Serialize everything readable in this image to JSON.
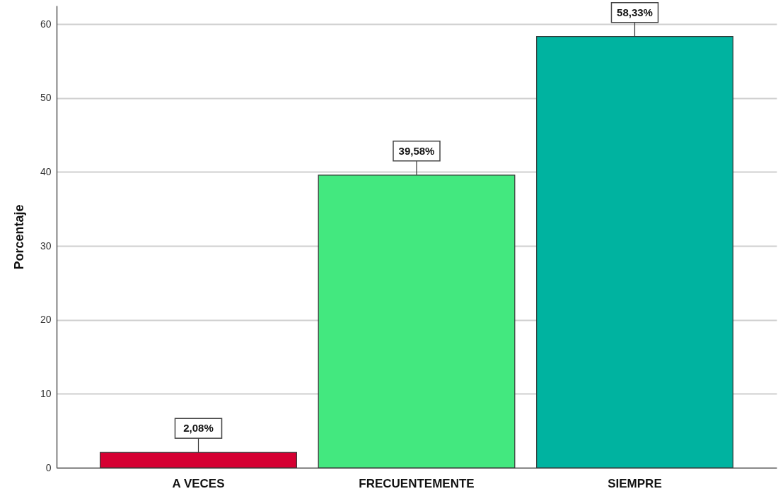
{
  "chart_data": {
    "type": "bar",
    "ylabel": "Porcentaje",
    "categories": [
      "A VECES",
      "FRECUENTEMENTE",
      "SIEMPRE"
    ],
    "values": [
      2.08,
      39.58,
      58.33
    ],
    "colors": [
      "#d50032",
      "#43e87f",
      "#00b3a0"
    ],
    "value_labels": [
      "2,08%",
      "39,58%",
      "58,33%"
    ],
    "ylim": [
      0,
      62.5
    ],
    "yticks": [
      0,
      10,
      20,
      30,
      40,
      50,
      60
    ],
    "grid": "y"
  }
}
